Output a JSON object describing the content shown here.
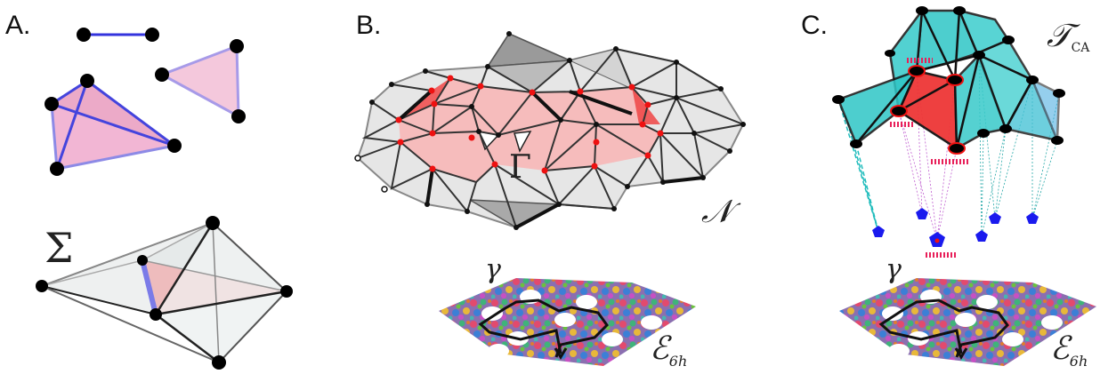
{
  "panels": {
    "a": {
      "label": "A.",
      "sigma": "Σ"
    },
    "b": {
      "label": "B.",
      "gamma_cap": "Γ",
      "nerve": "𝒩",
      "gamma": "γ",
      "env": "ℰ",
      "env_sub": "6h"
    },
    "c": {
      "label": "C.",
      "tca": "𝒯",
      "tca_sub": "CA",
      "gamma": "γ",
      "env": "ℰ",
      "env_sub": "6h"
    }
  },
  "colors": {
    "edge_blue": "#3333dd",
    "pink_face": "#f4b8d8",
    "red_face": "#ee4444",
    "grey_face": "#bbbbbb",
    "cyan_face": "#3ccfcf",
    "node_black": "#000000",
    "node_red": "#ee1111",
    "node_blue": "#1a1aee",
    "path_black": "#111111"
  },
  "icons": [
    "filled-circle-node",
    "blue-pentagon-node",
    "red-dashed-marker"
  ]
}
